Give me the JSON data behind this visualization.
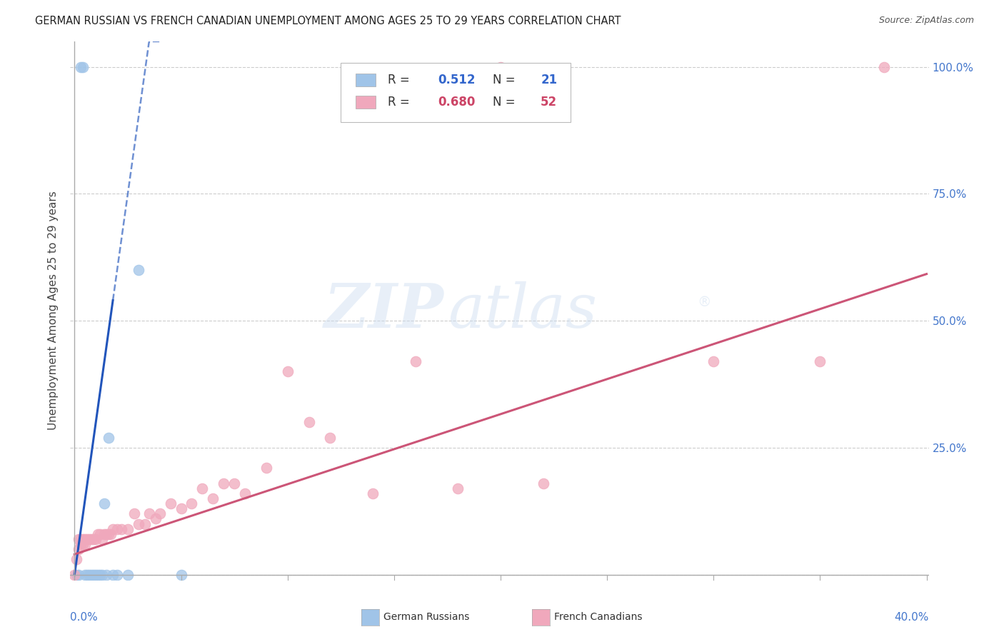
{
  "title": "GERMAN RUSSIAN VS FRENCH CANADIAN UNEMPLOYMENT AMONG AGES 25 TO 29 YEARS CORRELATION CHART",
  "source": "Source: ZipAtlas.com",
  "ylabel": "Unemployment Among Ages 25 to 29 years",
  "blue_color": "#a0c4e8",
  "pink_color": "#f0a8bc",
  "blue_line_color": "#2255bb",
  "pink_line_color": "#cc5577",
  "blue_r": "0.512",
  "blue_n": "21",
  "pink_r": "0.680",
  "pink_n": "52",
  "blue_val_color": "#3366cc",
  "pink_val_color": "#cc4466",
  "tick_label_color": "#4477cc",
  "gr_x": [
    0.001,
    0.002,
    0.003,
    0.004,
    0.005,
    0.006,
    0.007,
    0.008,
    0.009,
    0.01,
    0.011,
    0.012,
    0.013,
    0.014,
    0.015,
    0.016,
    0.018,
    0.02,
    0.025,
    0.03,
    0.05
  ],
  "gr_y": [
    0.0,
    0.0,
    1.0,
    1.0,
    0.0,
    0.0,
    0.0,
    0.0,
    0.0,
    0.0,
    0.0,
    0.0,
    0.0,
    0.14,
    0.0,
    0.27,
    0.0,
    0.0,
    0.0,
    0.6,
    0.0
  ],
  "fc_x": [
    0.0,
    0.001,
    0.002,
    0.002,
    0.003,
    0.003,
    0.004,
    0.004,
    0.005,
    0.005,
    0.006,
    0.007,
    0.008,
    0.009,
    0.01,
    0.011,
    0.012,
    0.013,
    0.014,
    0.015,
    0.016,
    0.017,
    0.018,
    0.02,
    0.022,
    0.025,
    0.028,
    0.03,
    0.033,
    0.035,
    0.038,
    0.04,
    0.045,
    0.05,
    0.055,
    0.06,
    0.065,
    0.07,
    0.075,
    0.08,
    0.09,
    0.1,
    0.11,
    0.12,
    0.14,
    0.16,
    0.18,
    0.2,
    0.22,
    0.3,
    0.35,
    0.38
  ],
  "fc_y": [
    0.0,
    0.03,
    0.05,
    0.07,
    0.06,
    0.07,
    0.06,
    0.07,
    0.06,
    0.07,
    0.07,
    0.07,
    0.07,
    0.07,
    0.07,
    0.08,
    0.08,
    0.07,
    0.08,
    0.08,
    0.08,
    0.08,
    0.09,
    0.09,
    0.09,
    0.09,
    0.12,
    0.1,
    0.1,
    0.12,
    0.11,
    0.12,
    0.14,
    0.13,
    0.14,
    0.17,
    0.15,
    0.18,
    0.18,
    0.16,
    0.21,
    0.4,
    0.3,
    0.27,
    0.16,
    0.42,
    0.17,
    1.0,
    0.18,
    0.42,
    0.42,
    1.0
  ],
  "xmin": 0.0,
  "xmax": 0.401,
  "ymin": 0.0,
  "ymax": 1.05,
  "yticks": [
    0.0,
    0.25,
    0.5,
    0.75,
    1.0
  ],
  "ytick_labels": [
    "",
    "25.0%",
    "50.0%",
    "75.0%",
    "100.0%"
  ],
  "xtick_positions": [
    0.0,
    0.05,
    0.1,
    0.15,
    0.2,
    0.25,
    0.3,
    0.35,
    0.4
  ],
  "grid_color": "#cccccc",
  "watermark_line1": "ZIP",
  "watermark_line2": "atlas",
  "legend_label_blue": "German Russians",
  "legend_label_pink": "French Canadians",
  "blue_line_solid_end": 0.018,
  "blue_line_dashed_end": 0.04,
  "blue_intercept_override": 0.0,
  "blue_slope_override": 30.0,
  "pink_slope_override": 1.38,
  "pink_intercept_override": 0.04
}
